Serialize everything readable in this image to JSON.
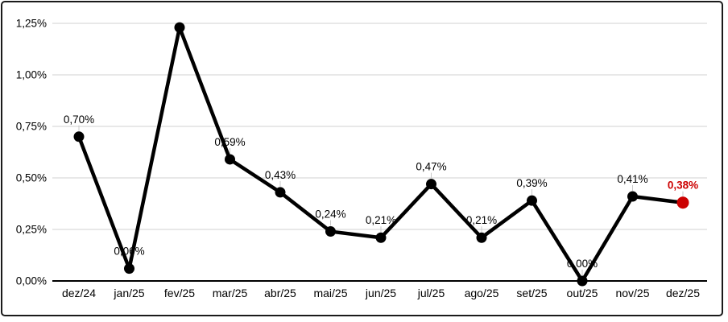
{
  "chart_data": {
    "type": "line",
    "title": "",
    "xlabel": "",
    "ylabel": "",
    "categories": [
      "dez/24",
      "jan/25",
      "fev/25",
      "mar/25",
      "abr/25",
      "mai/25",
      "jun/25",
      "jul/25",
      "ago/25",
      "set/25",
      "out/25",
      "nov/25",
      "dez/25"
    ],
    "values": [
      0.7,
      0.06,
      1.23,
      0.59,
      0.43,
      0.24,
      0.21,
      0.47,
      0.21,
      0.39,
      0.0,
      0.41,
      0.38
    ],
    "labels": [
      "0,70%",
      "0,06%",
      "",
      "0,59%",
      "0,43%",
      "0,24%",
      "0,21%",
      "0,47%",
      "0,21%",
      "0,39%",
      "0,00%",
      "0,41%",
      "0,38%"
    ],
    "highlight_index": 12,
    "y_ticks": [
      {
        "value": 0.0,
        "label": "0,00%"
      },
      {
        "value": 0.25,
        "label": "0,25%"
      },
      {
        "value": 0.5,
        "label": "0,50%"
      },
      {
        "value": 0.75,
        "label": "0,75%"
      },
      {
        "value": 1.0,
        "label": "1,00%"
      },
      {
        "value": 1.25,
        "label": "1,25%"
      }
    ],
    "ylim": [
      0,
      1.25
    ],
    "grid": true,
    "legend": "none",
    "colors": {
      "line": "#000000",
      "marker": "#000000",
      "highlight": "#cc0000",
      "gridline": "#d9d9d9",
      "axis": "#000000",
      "text": "#000000",
      "leader": "#c9c9c9",
      "frame_border": "#1a1a1a"
    }
  }
}
